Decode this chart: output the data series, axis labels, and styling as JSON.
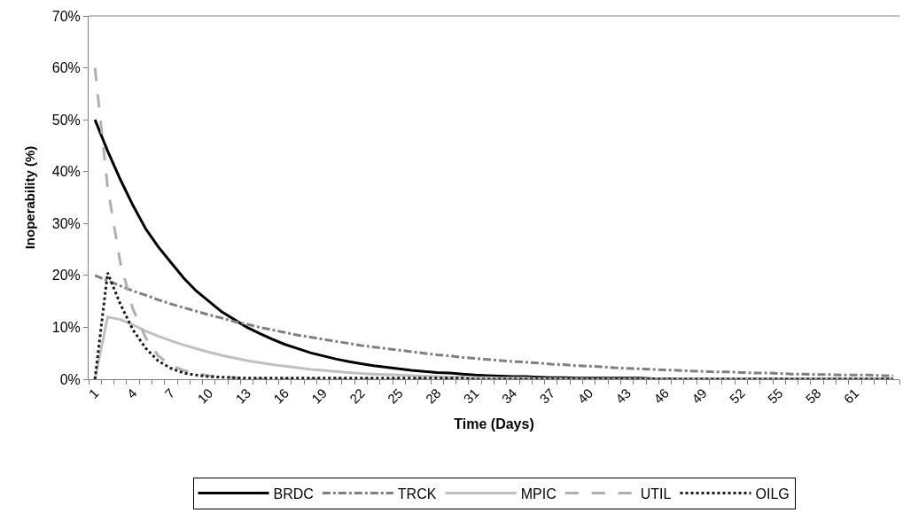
{
  "chart_data": {
    "type": "line",
    "xlabel": "Time (Days)",
    "ylabel": "Inoperability (%)",
    "categories": [
      "1",
      null,
      null,
      "4",
      null,
      null,
      "7",
      null,
      null,
      "10",
      null,
      null,
      "13",
      null,
      null,
      "16",
      null,
      null,
      "19",
      null,
      null,
      "22",
      null,
      null,
      "25",
      null,
      null,
      "28",
      null,
      null,
      "31",
      null,
      null,
      "34",
      null,
      null,
      "37",
      null,
      null,
      "40",
      null,
      null,
      "43",
      null,
      null,
      "46",
      null,
      null,
      "49",
      null,
      null,
      "52",
      null,
      null,
      "55",
      null,
      null,
      "58",
      null,
      null,
      "61",
      null,
      null,
      null
    ],
    "ylim": [
      0,
      70
    ],
    "yticks": [
      {
        "value": 0,
        "label": "0%"
      },
      {
        "value": 10,
        "label": "10%"
      },
      {
        "value": 20,
        "label": "20%"
      },
      {
        "value": 30,
        "label": "30%"
      },
      {
        "value": 40,
        "label": "40%"
      },
      {
        "value": 50,
        "label": "50%"
      },
      {
        "value": 60,
        "label": "60%"
      },
      {
        "value": 70,
        "label": "70%"
      }
    ],
    "legend": "bottom",
    "marker": "none",
    "series": [
      {
        "name": "BRDC",
        "color": "#000000",
        "line_style": "solid",
        "values": [
          50,
          44,
          38.5,
          33.5,
          29,
          25.5,
          22.5,
          19.5,
          17,
          15,
          13,
          11.5,
          10,
          8.8,
          7.7,
          6.7,
          5.9,
          5.1,
          4.5,
          3.9,
          3.4,
          3.0,
          2.6,
          2.3,
          2.0,
          1.7,
          1.5,
          1.3,
          1.2,
          1.0,
          0.8,
          0.7,
          0.6,
          0.5,
          0.5,
          0.4,
          0.3,
          0.3,
          0.2,
          0.2,
          0.2,
          0.2,
          0.2,
          0.2,
          0.1,
          0.1,
          0,
          0,
          0,
          0,
          0,
          0,
          0,
          0,
          0,
          0,
          0,
          0,
          0,
          0,
          0,
          0,
          0,
          0
        ]
      },
      {
        "name": "TRCK",
        "color": "#808080",
        "line_style": "dashdot",
        "values": [
          20,
          19,
          18,
          17,
          16.2,
          15.3,
          14.5,
          13.8,
          13.1,
          12.4,
          11.8,
          11.1,
          10.6,
          10.0,
          9.5,
          9.0,
          8.5,
          8.1,
          7.7,
          7.3,
          6.9,
          6.5,
          6.2,
          5.9,
          5.6,
          5.3,
          5.0,
          4.7,
          4.5,
          4.2,
          4.0,
          3.8,
          3.6,
          3.4,
          3.3,
          3.1,
          2.9,
          2.8,
          2.6,
          2.5,
          2.4,
          2.2,
          2.1,
          2.0,
          1.9,
          1.8,
          1.7,
          1.6,
          1.5,
          1.4,
          1.4,
          1.3,
          1.2,
          1.2,
          1.1,
          1.0,
          1.0,
          0.9,
          0.9,
          0.8,
          0.8,
          0.8,
          0.7,
          0.7
        ]
      },
      {
        "name": "MPIC",
        "color": "#c0c0c0",
        "line_style": "solid",
        "values": [
          0,
          12,
          11.5,
          10.5,
          9.3,
          8.3,
          7.4,
          6.6,
          5.9,
          5.2,
          4.6,
          4.1,
          3.6,
          3.2,
          2.8,
          2.5,
          2.2,
          1.9,
          1.7,
          1.5,
          1.3,
          1.1,
          1.0,
          0.9,
          0.8,
          0.7,
          0.6,
          0.5,
          0.4,
          0.4,
          0.3,
          0.3,
          0.2,
          0.2,
          0.2,
          0.1,
          0.1,
          0.1,
          0,
          0,
          0,
          0,
          0,
          0,
          0,
          0,
          0,
          0,
          0,
          0,
          0,
          0,
          0,
          0,
          0,
          0,
          0,
          0,
          0,
          0,
          0,
          0,
          0,
          0
        ]
      },
      {
        "name": "UTIL",
        "color": "#b0b0b0",
        "line_style": "dashed",
        "values": [
          60,
          37,
          22.5,
          13.5,
          8,
          4.5,
          2.7,
          1.7,
          1.1,
          0.7,
          0.5,
          0.3,
          0.2,
          0.1,
          0,
          0,
          0,
          0,
          0,
          0,
          0,
          0,
          0,
          0,
          0,
          0,
          0,
          0,
          0,
          0,
          0,
          0,
          0,
          0,
          0,
          0,
          0,
          0,
          0,
          0,
          0,
          0,
          0,
          0,
          0,
          0,
          0,
          0,
          0,
          0,
          0,
          0,
          0,
          0,
          0,
          0,
          0,
          0,
          0,
          0,
          0,
          0,
          0,
          0
        ]
      },
      {
        "name": "OILG",
        "color": "#1a1a1a",
        "line_style": "dotted",
        "values": [
          0,
          20.5,
          14.5,
          9.5,
          6,
          3.5,
          2.1,
          1.2,
          0.8,
          0.5,
          0.4,
          0.3,
          0.2,
          0.2,
          0.2,
          0.2,
          0.2,
          0.2,
          0.2,
          0.2,
          0.2,
          0.2,
          0.2,
          0.2,
          0.2,
          0.2,
          0.2,
          0.2,
          0.2,
          0.2,
          0,
          0,
          0,
          0,
          0,
          0,
          0,
          0,
          0,
          0,
          0,
          0,
          0,
          0,
          0,
          0,
          0,
          0,
          0,
          0,
          0,
          0,
          0,
          0,
          0,
          0,
          0,
          0,
          0,
          0,
          0,
          0,
          0,
          0
        ]
      }
    ]
  }
}
